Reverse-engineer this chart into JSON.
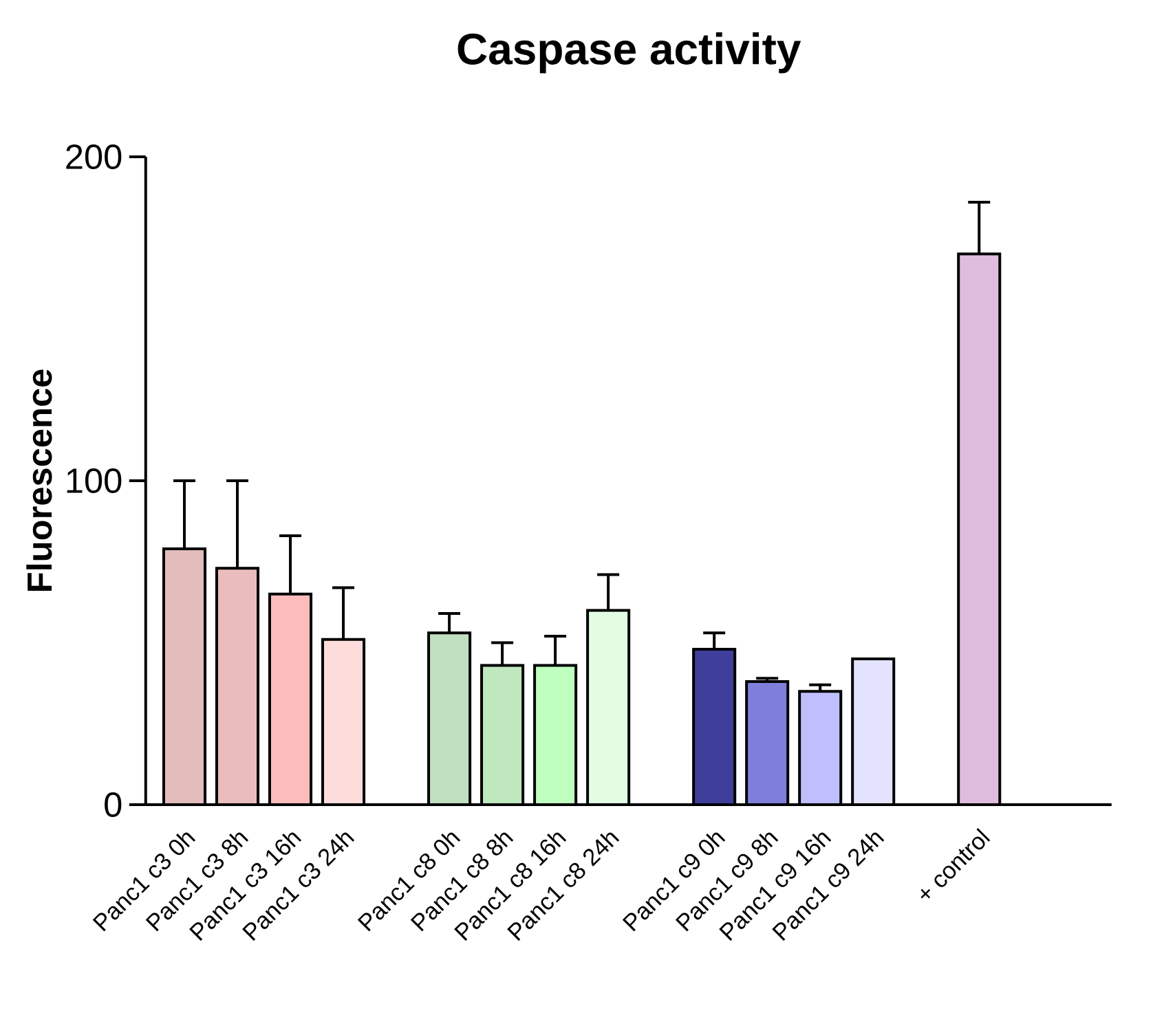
{
  "chart_data": {
    "type": "bar",
    "title": "Caspase activity",
    "ylabel": "Fluorescence",
    "categories": [
      "Panc1 c3 0h",
      "Panc1 c3 8h",
      "Panc1 c3 16h",
      "Panc1 c3 24h",
      null,
      "Panc1 c8 0h",
      "Panc1 c8 8h",
      "Panc1 c8 16h",
      "Panc1 c8 24h",
      null,
      "Panc1 c9 0h",
      "Panc1 c9 8h",
      "Panc1 c9 16h",
      "Panc1 c9 24h",
      null,
      "+ control"
    ],
    "values": [
      79,
      73,
      65,
      51,
      null,
      53,
      43,
      43,
      60,
      null,
      48,
      38,
      35,
      45,
      null,
      170
    ],
    "errors": [
      21,
      27,
      18,
      16,
      null,
      6,
      7,
      9,
      11,
      null,
      5,
      1,
      2,
      null,
      null,
      16
    ],
    "colors": [
      "#e3bcbc",
      "#ebbcbc",
      "#fdbcbc",
      "#fedcdc",
      null,
      "#c0dfc0",
      "#bfe8bf",
      "#bfffbf",
      "#e3fde3",
      null,
      "#3f3f9b",
      "#7f7fdb",
      "#bfbffd",
      "#e3e3fd",
      null,
      "#dfbedd"
    ],
    "ylim": [
      0,
      200
    ],
    "yticks": [
      0,
      100,
      200
    ]
  }
}
